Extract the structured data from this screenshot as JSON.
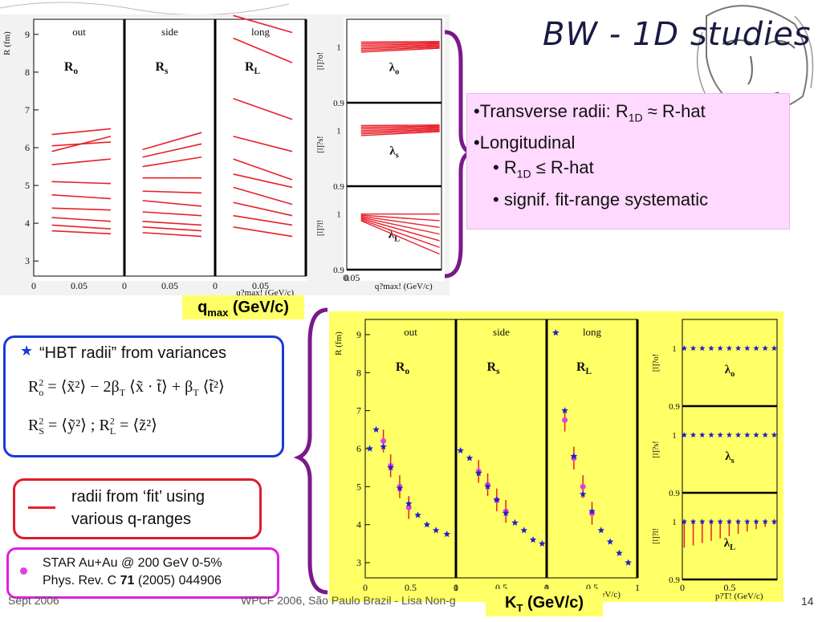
{
  "slide": {
    "title": "BW - 1D studies",
    "page_number": "14",
    "footer_left": "Sept 2006",
    "footer_mid": "WPCF 2006, São Paulo Brazil - Lisa Non-g"
  },
  "bullets": {
    "b1_prefix": "•Transverse radii: R",
    "b1_sub": "1D",
    "b1_suffix": " ≈ R-hat",
    "b2": "•Longitudinal",
    "b3_prefix": "• R",
    "b3_sub": "1D",
    "b3_suffix": " ≤ R-hat",
    "b4": "• signif. fit-range systematic"
  },
  "labels": {
    "qmax": "q",
    "qmax_sub": "max",
    "qmax_unit": " (GeV/c)",
    "kt": "K",
    "kt_sub": "T",
    "kt_unit": " (GeV/c)"
  },
  "hbt_box": {
    "star": "★",
    "title": "“HBT radii” from variances",
    "eq1_lhs": "R",
    "eq1_sub": "o",
    "eq1_rhs": "= ⟨x̃²⟩ − 2β",
    "eq1_rhs_sub": "T",
    "eq1_rhs2": "⟨x̃ · t̃⟩ + β",
    "eq1_rhs2_sub": "T",
    "eq1_rhs3": "⟨t̃²⟩",
    "eq2_lhs": "R",
    "eq2_sub": "S",
    "eq2_rhs": "= ⟨ỹ²⟩   ;   R",
    "eq2_sub2": "L",
    "eq2_rhs2": "= ⟨z̃²⟩"
  },
  "fit_box": {
    "line1": "radii from ‘fit’ using",
    "line2": "various q-ranges"
  },
  "star_box": {
    "line1": "STAR Au+Au @ 200 GeV 0-5%",
    "line2_prefix": "Phys. Rev. C ",
    "line2_bold": "71",
    "line2_suffix": " (2005) 044906"
  },
  "colors": {
    "fit_line": "#e8202a",
    "star_marker": "#2020c8",
    "circle_marker": "#e040e0",
    "panel_bg_bottom": "#ffff66",
    "panel_bg_top": "#ffffff"
  },
  "chart_data": [
    {
      "type": "line",
      "name": "top-radii",
      "panels": [
        {
          "title": "out",
          "label": "R",
          "label_sub": "o"
        },
        {
          "title": "side",
          "label": "R",
          "label_sub": "s"
        },
        {
          "title": "long",
          "label": "R",
          "label_sub": "L"
        }
      ],
      "ylabel": "R (fm)",
      "ylim": [
        2.6,
        9.4
      ],
      "yticks": [
        3,
        4,
        5,
        6,
        7,
        8,
        9
      ],
      "xlim": [
        0,
        0.1
      ],
      "xticks": [
        0,
        0.05
      ],
      "xlabel": "q?max! (GeV/c)",
      "series_out": [
        [
          6.35,
          6.5
        ],
        [
          6.05,
          6.15
        ],
        [
          5.9,
          6.3
        ],
        [
          5.55,
          5.7
        ],
        [
          5.1,
          5.05
        ],
        [
          4.75,
          4.65
        ],
        [
          4.4,
          4.35
        ],
        [
          4.15,
          4.05
        ],
        [
          3.95,
          3.85
        ],
        [
          3.8,
          3.72
        ]
      ],
      "series_side": [
        [
          5.95,
          6.4
        ],
        [
          5.75,
          6.1
        ],
        [
          5.5,
          5.75
        ],
        [
          5.2,
          5.2
        ],
        [
          4.85,
          4.8
        ],
        [
          4.6,
          4.45
        ],
        [
          4.3,
          4.2
        ],
        [
          4.05,
          3.95
        ],
        [
          3.9,
          3.8
        ],
        [
          3.75,
          3.65
        ]
      ],
      "series_long": [
        [
          9.5,
          9.05
        ],
        [
          8.9,
          8.25
        ],
        [
          7.3,
          6.75
        ],
        [
          6.3,
          5.9
        ],
        [
          5.7,
          5.15
        ],
        [
          5.3,
          4.95
        ],
        [
          4.95,
          4.5
        ],
        [
          4.55,
          4.2
        ],
        [
          4.2,
          3.95
        ],
        [
          3.9,
          3.65
        ]
      ]
    },
    {
      "type": "line",
      "name": "top-lambda",
      "panels": [
        {
          "label": "λ",
          "label_sub": "o",
          "ylabel": "[l]?o!"
        },
        {
          "label": "λ",
          "label_sub": "s",
          "ylabel": "[l]?s!"
        },
        {
          "label": "λ",
          "label_sub": "L",
          "ylabel": "[l]?l!"
        }
      ],
      "ylim": [
        0.9,
        1.05
      ],
      "yticks": [
        0.9,
        1
      ],
      "xlim": [
        0,
        0.1
      ],
      "xticks": [
        0,
        0.05
      ],
      "xlabel": "q?max! (GeV/c)"
    },
    {
      "type": "scatter",
      "name": "bottom-radii",
      "panels": [
        {
          "title": "out",
          "label": "R",
          "label_sub": "o"
        },
        {
          "title": "side",
          "label": "R",
          "label_sub": "s"
        },
        {
          "title": "long",
          "label": "R",
          "label_sub": "L"
        }
      ],
      "ylabel": "R (fm)",
      "ylim": [
        2.6,
        9.4
      ],
      "yticks": [
        3,
        4,
        5,
        6,
        7,
        8,
        9
      ],
      "xlim": [
        0,
        1.0
      ],
      "xticks": [
        0,
        0.5,
        1
      ],
      "xlabel": "p?T! (GeV/c)",
      "out_stars": [
        [
          0.05,
          6.0
        ],
        [
          0.12,
          6.5
        ],
        [
          0.2,
          6.05
        ],
        [
          0.28,
          5.5
        ],
        [
          0.38,
          4.95
        ],
        [
          0.48,
          4.55
        ],
        [
          0.58,
          4.25
        ],
        [
          0.68,
          4.0
        ],
        [
          0.78,
          3.85
        ],
        [
          0.9,
          3.75
        ]
      ],
      "out_circles": [
        [
          0.2,
          6.2
        ],
        [
          0.28,
          5.55
        ],
        [
          0.38,
          5.0
        ],
        [
          0.48,
          4.45
        ]
      ],
      "side_stars": [
        [
          0.05,
          5.95
        ],
        [
          0.15,
          5.75
        ],
        [
          0.25,
          5.35
        ],
        [
          0.35,
          5.0
        ],
        [
          0.45,
          4.65
        ],
        [
          0.55,
          4.3
        ],
        [
          0.65,
          4.05
        ],
        [
          0.75,
          3.85
        ],
        [
          0.85,
          3.6
        ],
        [
          0.95,
          3.5
        ]
      ],
      "side_circles": [
        [
          0.25,
          5.4
        ],
        [
          0.35,
          5.05
        ],
        [
          0.45,
          4.65
        ],
        [
          0.55,
          4.35
        ]
      ],
      "long_stars": [
        [
          0.1,
          9.05
        ],
        [
          0.2,
          7.0
        ],
        [
          0.3,
          5.8
        ],
        [
          0.4,
          4.8
        ],
        [
          0.5,
          4.35
        ],
        [
          0.6,
          3.85
        ],
        [
          0.7,
          3.55
        ],
        [
          0.8,
          3.25
        ],
        [
          0.9,
          3.0
        ]
      ],
      "long_circles": [
        [
          0.2,
          6.75
        ],
        [
          0.3,
          5.75
        ],
        [
          0.4,
          5.0
        ],
        [
          0.5,
          4.3
        ]
      ]
    },
    {
      "type": "scatter",
      "name": "bottom-lambda",
      "panels": [
        {
          "label": "λ",
          "label_sub": "o",
          "ylabel": "[l]?o!"
        },
        {
          "label": "λ",
          "label_sub": "s",
          "ylabel": "[l]?s!"
        },
        {
          "label": "λ",
          "label_sub": "L",
          "ylabel": "[l]?l!"
        }
      ],
      "ylim": [
        0.9,
        1.05
      ],
      "yticks": [
        0.9,
        1
      ],
      "xlim": [
        0,
        1.0
      ],
      "xticks": [
        0,
        0.5
      ],
      "xlabel": "p?T! (GeV/c)"
    }
  ]
}
